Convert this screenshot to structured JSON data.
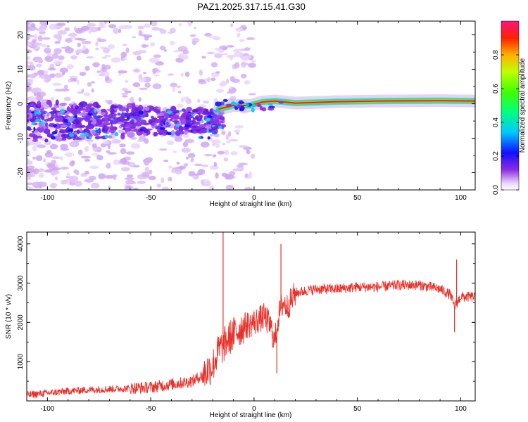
{
  "title": "PAZ1.2025.317.15.41.G30",
  "chart_data": [
    {
      "type": "heatmap",
      "name": "spectrogram",
      "xlabel": "Height of straight line (km)",
      "ylabel": "Frequency (Hz)",
      "xlim": [
        -110,
        107
      ],
      "ylim": [
        -25,
        24
      ],
      "x_ticks": [
        -100,
        -50,
        0,
        50,
        100
      ],
      "x_tick_labels": [
        "-100",
        "-50",
        "0",
        "50",
        "100"
      ],
      "y_ticks": [
        -20,
        -10,
        0,
        10,
        20
      ],
      "y_tick_labels": [
        "-20",
        "-10",
        "0",
        "10",
        "20"
      ],
      "colorbar": {
        "label": "Normalized spectral amplitude",
        "range": [
          0.0,
          1.0
        ],
        "ticks": [
          0.0,
          0.2,
          0.4,
          0.6,
          0.8
        ],
        "tick_labels": [
          "0.0",
          "0.2",
          "0.4",
          "0.6",
          "0.8"
        ],
        "colormap": "rainbow"
      },
      "ridge": [
        {
          "x": -17,
          "freq": -1.5
        },
        {
          "x": -10,
          "freq": -0.5
        },
        {
          "x": -2,
          "freq": -0.5
        },
        {
          "x": 4,
          "freq": 0.5
        },
        {
          "x": 10,
          "freq": 0.8
        },
        {
          "x": 20,
          "freq": 0.2
        },
        {
          "x": 40,
          "freq": 0.6
        },
        {
          "x": 60,
          "freq": 0.8
        },
        {
          "x": 90,
          "freq": 0.9
        },
        {
          "x": 107,
          "freq": 0.8
        }
      ]
    },
    {
      "type": "line",
      "name": "snr",
      "xlabel": "Height of straight line (km)",
      "ylabel": "SNR (10 * v/v)",
      "xlim": [
        -110,
        107
      ],
      "ylim": [
        0,
        4300
      ],
      "x_ticks": [
        -100,
        -50,
        0,
        50,
        100
      ],
      "x_tick_labels": [
        "-100",
        "-50",
        "0",
        "50",
        "100"
      ],
      "y_ticks": [
        1000,
        2000,
        3000,
        4000
      ],
      "y_tick_labels": [
        "1000",
        "2000",
        "3000",
        "4000"
      ],
      "series": [
        {
          "name": "SNR",
          "color": "#e8312a",
          "x": [
            -110,
            -100,
            -90,
            -80,
            -70,
            -60,
            -50,
            -40,
            -30,
            -25,
            -20,
            -17,
            -15,
            -12,
            -10,
            -5,
            0,
            5,
            8,
            10,
            12,
            14,
            16,
            18,
            20,
            25,
            30,
            40,
            50,
            60,
            70,
            80,
            90,
            95,
            97,
            100,
            107
          ],
          "y": [
            150,
            200,
            250,
            280,
            300,
            320,
            350,
            420,
            500,
            650,
            900,
            1300,
            1400,
            1600,
            1700,
            1900,
            2000,
            2150,
            1900,
            1500,
            2200,
            2500,
            2400,
            2550,
            2750,
            2800,
            2850,
            2850,
            2900,
            2900,
            2950,
            2950,
            2850,
            2700,
            2400,
            2650,
            2650
          ]
        }
      ],
      "spikes": [
        {
          "x": -15,
          "y": 4300
        },
        {
          "x": 13,
          "y": 4000
        },
        {
          "x": 11,
          "y": 700
        },
        {
          "x": 97,
          "y": 1750
        },
        {
          "x": 98,
          "y": 3600
        }
      ]
    }
  ]
}
